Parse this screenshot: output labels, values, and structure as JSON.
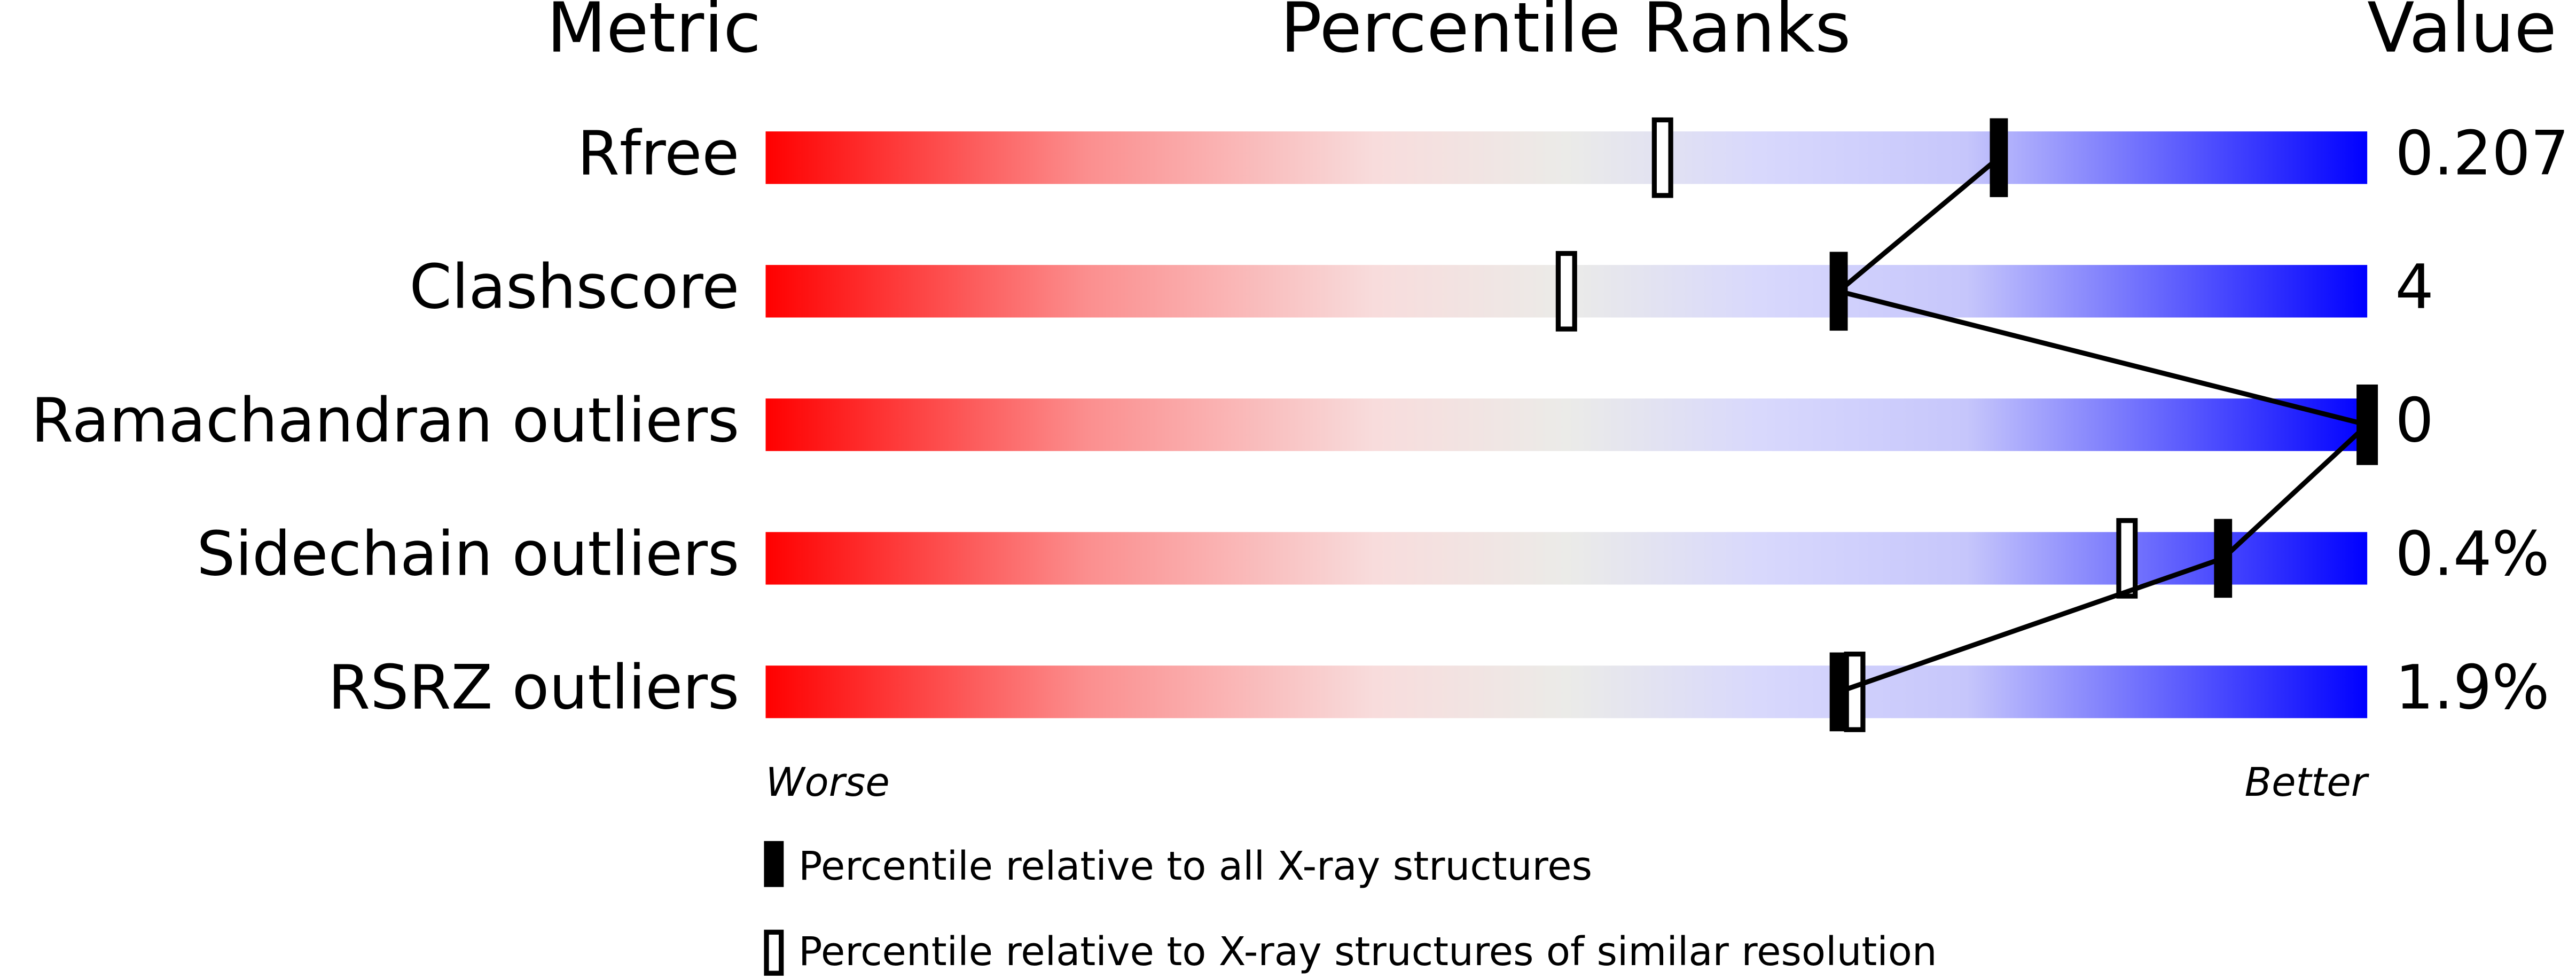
{
  "chart_data": {
    "type": "percentile-slider",
    "headers": {
      "metric": "Metric",
      "ranks": "Percentile Ranks",
      "value": "Value"
    },
    "categories": [
      "Rfree",
      "Clashscore",
      "Ramachandran outliers",
      "Sidechain outliers",
      "RSRZ outliers"
    ],
    "value_labels": [
      "0.207",
      "4",
      "0",
      "0.4%",
      "1.9%"
    ],
    "xlim": [
      0,
      100
    ],
    "series": [
      {
        "name": "Percentile relative to all X-ray structures",
        "color": "#000000",
        "values": [
          77,
          67,
          100,
          91,
          67
        ]
      },
      {
        "name": "Percentile relative to X-ray structures of similar resolution",
        "color": "#000000",
        "values": [
          56,
          50,
          100,
          85,
          68
        ]
      }
    ],
    "scale_labels": {
      "low": "Worse",
      "high": "Better"
    }
  }
}
